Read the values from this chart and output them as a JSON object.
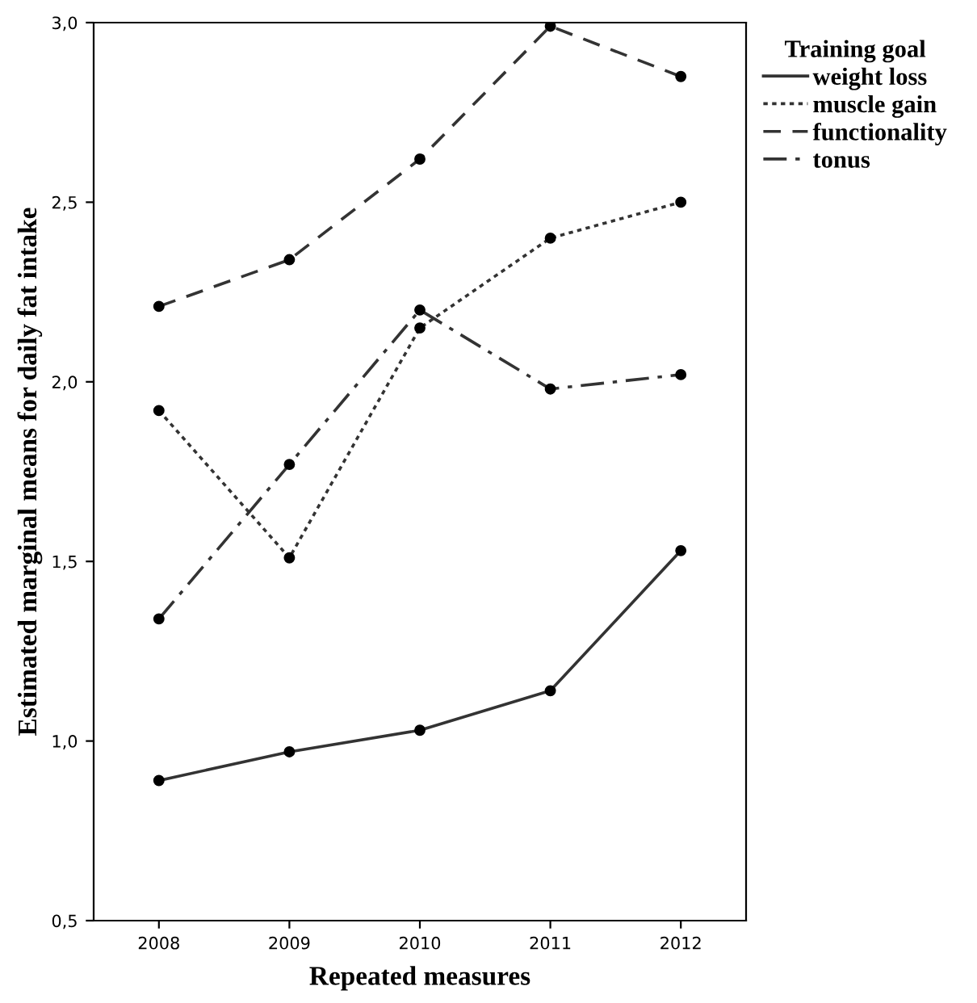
{
  "chart_data": {
    "type": "line",
    "xlabel": "Repeated measures",
    "ylabel": "Estimated marginal means for daily fat intake",
    "legend_title": "Training goal",
    "legend": "top right",
    "marker": "circle",
    "grid": false,
    "categories": [
      "2008",
      "2009",
      "2010",
      "2011",
      "2012"
    ],
    "ylim": [
      0.5,
      3.0
    ],
    "yticks": [
      {
        "value": 0.5,
        "label": "0,5"
      },
      {
        "value": 1.0,
        "label": "1,0"
      },
      {
        "value": 1.5,
        "label": "1,5"
      },
      {
        "value": 2.0,
        "label": "2,0"
      },
      {
        "value": 2.5,
        "label": "2,5"
      },
      {
        "value": 3.0,
        "label": "3,0"
      }
    ],
    "series": [
      {
        "name": "weight loss",
        "color": "#333333",
        "line_style": "solid",
        "values": [
          0.89,
          0.97,
          1.03,
          1.14,
          1.53
        ]
      },
      {
        "name": "muscle gain",
        "color": "#333333",
        "line_style": "dotted",
        "values": [
          1.92,
          1.51,
          2.15,
          2.4,
          2.5
        ]
      },
      {
        "name": "functionality",
        "color": "#333333",
        "line_style": "dashed",
        "values": [
          2.21,
          2.34,
          2.62,
          2.99,
          2.85
        ]
      },
      {
        "name": "tonus",
        "color": "#333333",
        "line_style": "dashdot",
        "values": [
          1.34,
          1.77,
          2.2,
          1.98,
          2.02
        ]
      }
    ]
  }
}
